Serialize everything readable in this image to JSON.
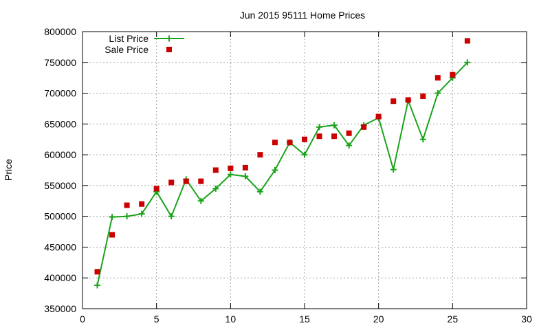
{
  "chart_data": {
    "type": "line",
    "title": "Jun 2015 95111 Home Prices",
    "xlabel": "",
    "ylabel": "Price",
    "xlim": [
      0,
      30
    ],
    "ylim": [
      350000,
      800000
    ],
    "xticks": [
      0,
      5,
      10,
      15,
      20,
      25,
      30
    ],
    "yticks": [
      350000,
      400000,
      450000,
      500000,
      550000,
      600000,
      650000,
      700000,
      750000,
      800000
    ],
    "grid": true,
    "legend_position": "top-left",
    "series": [
      {
        "name": "List Price",
        "style": "line+cross",
        "color": "#1aa31a",
        "x": [
          1,
          2,
          3,
          4,
          5,
          6,
          7,
          8,
          9,
          10,
          11,
          12,
          13,
          14,
          15,
          16,
          17,
          18,
          19,
          20,
          21,
          22,
          23,
          24,
          25,
          26
        ],
        "y": [
          388000,
          499000,
          500000,
          504000,
          540000,
          500000,
          560000,
          525000,
          545000,
          568000,
          565000,
          540000,
          575000,
          620000,
          600000,
          645000,
          648000,
          615000,
          648000,
          660000,
          576000,
          688000,
          625000,
          700000,
          725000,
          750000
        ]
      },
      {
        "name": "Sale Price",
        "style": "square",
        "color": "#cc0000",
        "x": [
          1,
          2,
          3,
          4,
          5,
          6,
          7,
          8,
          9,
          10,
          11,
          12,
          13,
          14,
          15,
          16,
          17,
          18,
          19,
          20,
          21,
          22,
          23,
          24,
          25,
          26
        ],
        "y": [
          410000,
          470000,
          518000,
          520000,
          545000,
          555000,
          557000,
          557000,
          575000,
          578000,
          579000,
          600000,
          620000,
          620000,
          625000,
          630000,
          630000,
          635000,
          645000,
          662000,
          687000,
          689000,
          695000,
          725000,
          730000,
          785000
        ]
      }
    ]
  }
}
